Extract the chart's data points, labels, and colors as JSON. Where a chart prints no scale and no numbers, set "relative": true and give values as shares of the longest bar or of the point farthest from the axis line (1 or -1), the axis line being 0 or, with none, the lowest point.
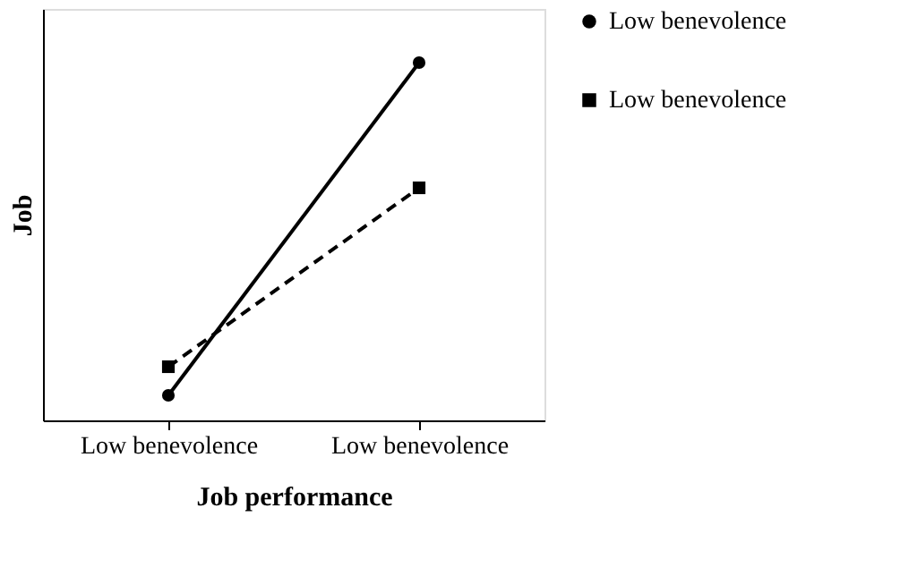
{
  "chart_data": {
    "type": "line",
    "xlabel": "Job performance",
    "ylabel": "Job",
    "categories": [
      "Low benevolence",
      "Low benevolence"
    ],
    "relative": true,
    "legend": "right",
    "grid": false,
    "series": [
      {
        "name": "Low benevolence",
        "color": "#000000",
        "values": [
          0.07,
          1
        ],
        "marker": "circle",
        "line_style": "solid"
      },
      {
        "name": "Low benevolence",
        "color": "#000000",
        "values": [
          0.15,
          0.65
        ],
        "marker": "square",
        "line_style": "dashed"
      }
    ]
  }
}
